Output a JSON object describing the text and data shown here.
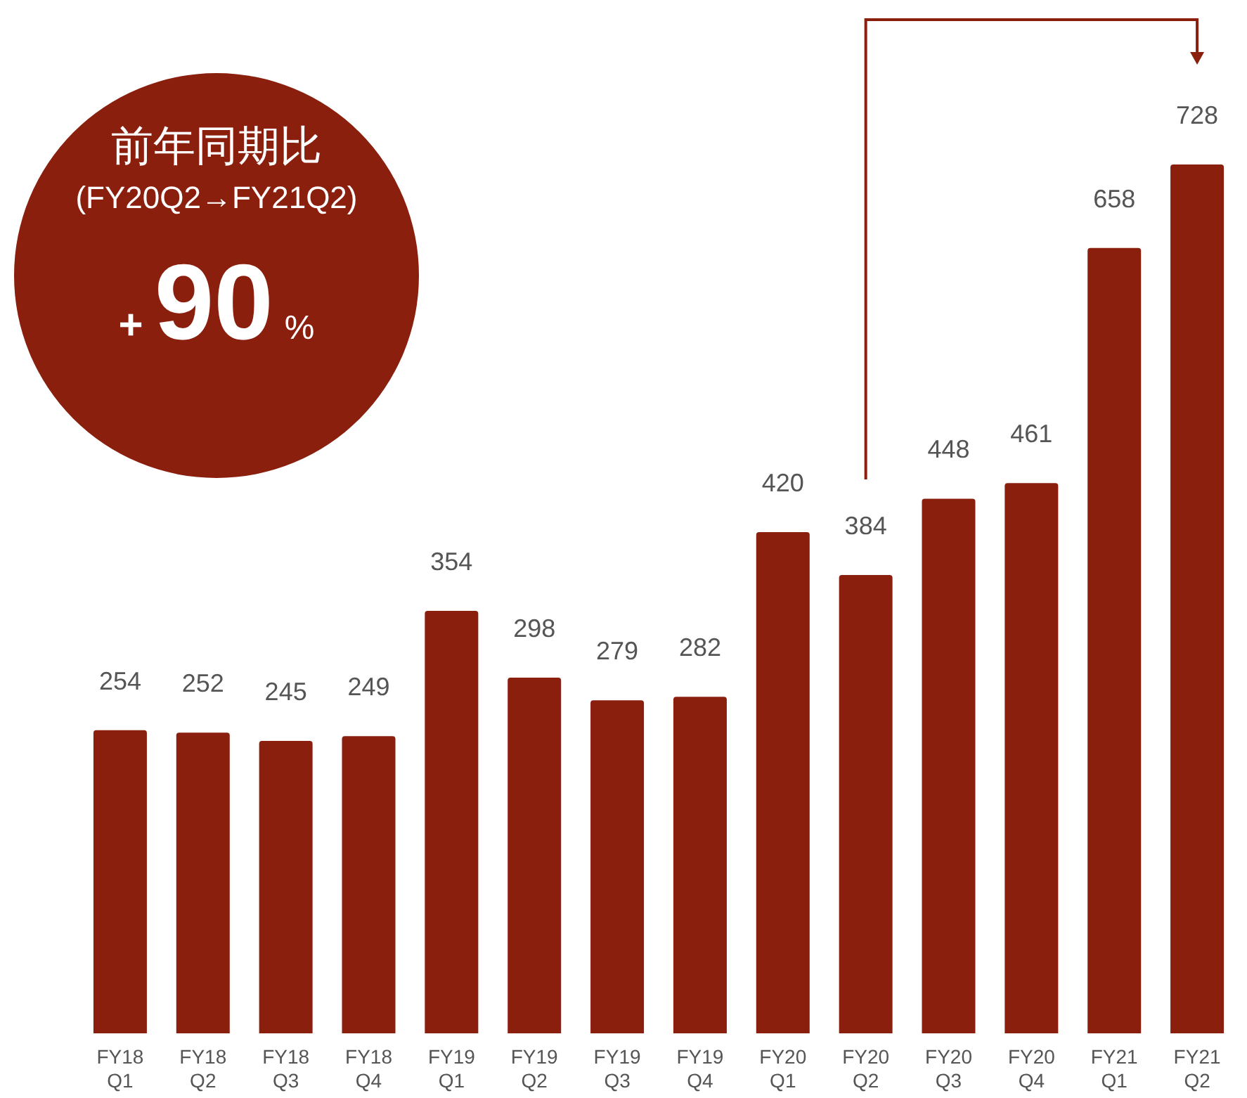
{
  "chart_data": {
    "type": "bar",
    "categories": [
      "FY18\nQ1",
      "FY18\nQ2",
      "FY18\nQ3",
      "FY18\nQ4",
      "FY19\nQ1",
      "FY19\nQ2",
      "FY19\nQ3",
      "FY19\nQ4",
      "FY20\nQ1",
      "FY20\nQ2",
      "FY20\nQ3",
      "FY20\nQ4",
      "FY21\nQ1",
      "FY21\nQ2"
    ],
    "values": [
      254,
      252,
      245,
      249,
      354,
      298,
      279,
      282,
      420,
      384,
      448,
      461,
      658,
      728
    ],
    "color": "#8b1f0e",
    "data_labels": true,
    "tick_labels": "x",
    "annotations": [
      "前年同期比",
      "(FY20Q2→FY21Q2)",
      "+90%"
    ]
  }
}
